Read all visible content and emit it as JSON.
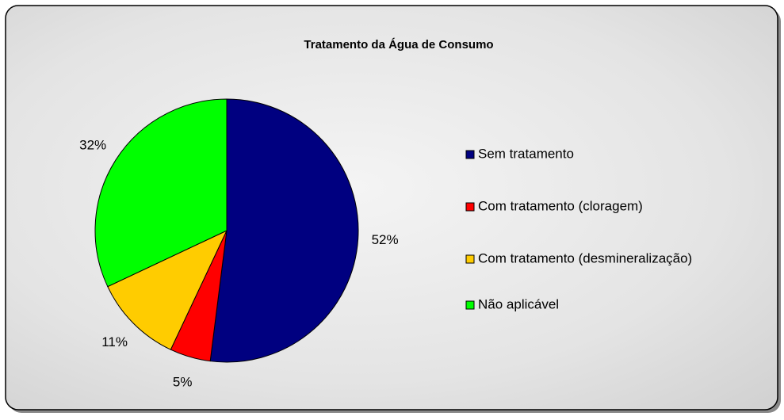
{
  "chart_data": {
    "type": "pie",
    "title": "Tratamento da Água de Consumo",
    "categories": [
      "Sem tratamento",
      "Com tratamento (cloragem)",
      "Com tratamento (desmineralização)",
      "Não aplicável"
    ],
    "values": [
      52,
      5,
      11,
      32
    ],
    "value_labels": [
      "52%",
      "5%",
      "11%",
      "32%"
    ],
    "colors": [
      "#000080",
      "#ff0000",
      "#ffcc00",
      "#00ff00"
    ],
    "legend": "right"
  }
}
